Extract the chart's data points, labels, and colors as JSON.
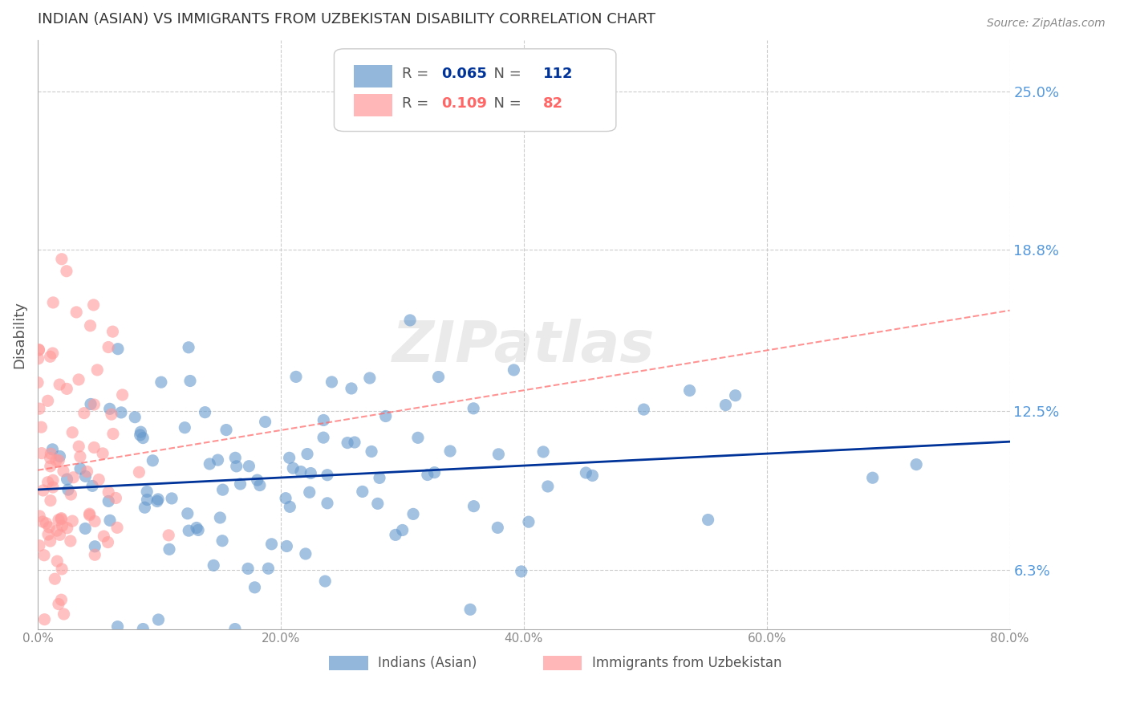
{
  "title": "INDIAN (ASIAN) VS IMMIGRANTS FROM UZBEKISTAN DISABILITY CORRELATION CHART",
  "source": "Source: ZipAtlas.com",
  "ylabel": "Disability",
  "xlabel": "",
  "watermark": "ZIPatlas",
  "xlim": [
    0.0,
    0.8
  ],
  "ylim": [
    0.04,
    0.27
  ],
  "xtick_labels": [
    "0.0%",
    "20.0%",
    "40.0%",
    "60.0%",
    "80.0%"
  ],
  "xtick_vals": [
    0.0,
    0.2,
    0.4,
    0.6,
    0.8
  ],
  "ytick_labels": [
    "6.3%",
    "12.5%",
    "18.8%",
    "25.0%"
  ],
  "ytick_vals": [
    0.063,
    0.125,
    0.188,
    0.25
  ],
  "blue_R": 0.065,
  "blue_N": 112,
  "pink_R": 0.109,
  "pink_N": 82,
  "blue_label": "Indians (Asian)",
  "pink_label": "Immigrants from Uzbekistan",
  "blue_color": "#6699CC",
  "pink_color": "#FF9999",
  "blue_trend_color": "#003399",
  "pink_trend_color": "#FF6666",
  "legend_R_color": "#3366CC",
  "legend_N_color": "#3366CC",
  "title_color": "#333333",
  "right_axis_color": "#5599DD",
  "background_color": "#FFFFFF",
  "grid_color": "#CCCCCC"
}
